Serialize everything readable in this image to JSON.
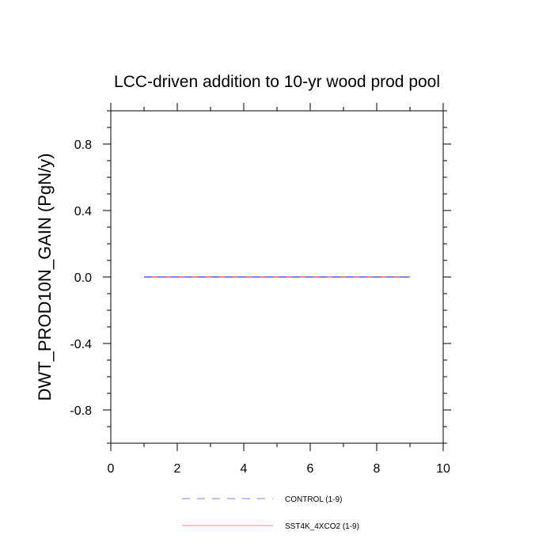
{
  "chart_data": {
    "type": "line",
    "title": "LCC-driven addition to 10-yr wood prod pool",
    "xlabel": "",
    "ylabel": "DWT_PROD10N_GAIN  (PgN/y)",
    "xlim": [
      0,
      10
    ],
    "ylim": [
      -1,
      1
    ],
    "xticks": [
      0,
      2,
      4,
      6,
      8,
      10
    ],
    "xtick_labels": [
      "0",
      "2",
      "4",
      "6",
      "8",
      "10"
    ],
    "yticks": [
      -0.8,
      -0.4,
      0.0,
      0.4,
      0.8
    ],
    "ytick_labels": [
      "-0.8",
      "-0.4",
      "0.0",
      "0.4",
      "0.8"
    ],
    "grid": false,
    "legend_position": "bottom",
    "series": [
      {
        "name": "CONTROL (1-9)",
        "color": "#8080ff",
        "style": "dashed",
        "x": [
          1,
          2,
          3,
          4,
          5,
          6,
          7,
          8,
          9
        ],
        "y": [
          0,
          0,
          0,
          0,
          0,
          0,
          0,
          0,
          0
        ]
      },
      {
        "name": "SST4K_4XCO2 (1-9)",
        "color": "#ff8080",
        "style": "solid",
        "x": [
          1,
          2,
          3,
          4,
          5,
          6,
          7,
          8,
          9
        ],
        "y": [
          0,
          0,
          0,
          0,
          0,
          0,
          0,
          0,
          0
        ]
      }
    ]
  }
}
